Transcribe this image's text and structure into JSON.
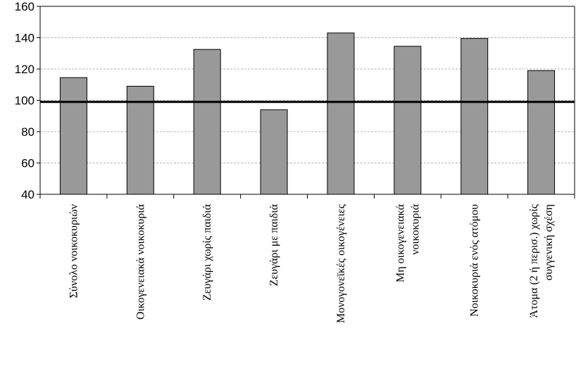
{
  "chart_data": {
    "type": "bar",
    "title": "",
    "xlabel": "",
    "ylabel": "",
    "ylim": [
      40,
      160
    ],
    "yticks": [
      40,
      60,
      80,
      100,
      120,
      140,
      160
    ],
    "grid": true,
    "reference_line": 99,
    "categories": [
      [
        "Σύνολο νοικοκυριών"
      ],
      [
        "Οικογενειακά νοικοκυριά"
      ],
      [
        "Ζευγάρι χωρίς παιδιά"
      ],
      [
        "Ζευγάρι με παιδιά"
      ],
      [
        "Μονογονεϊκές οικογένειες"
      ],
      [
        "Μη οικογενειακά",
        "νοικοκυριά"
      ],
      [
        "Νοικοκυριά ενός ατόμου"
      ],
      [
        "Άτομα (2 ή περισ.) χωρίς",
        "συγγενική σχέση"
      ]
    ],
    "values": [
      114.5,
      109,
      132.5,
      94,
      143,
      134.5,
      139.5,
      119
    ],
    "colors": {
      "bar": "#999999",
      "bar_stroke": "#000000",
      "grid": "#b3b3b3",
      "reference_line": "#000000"
    }
  }
}
